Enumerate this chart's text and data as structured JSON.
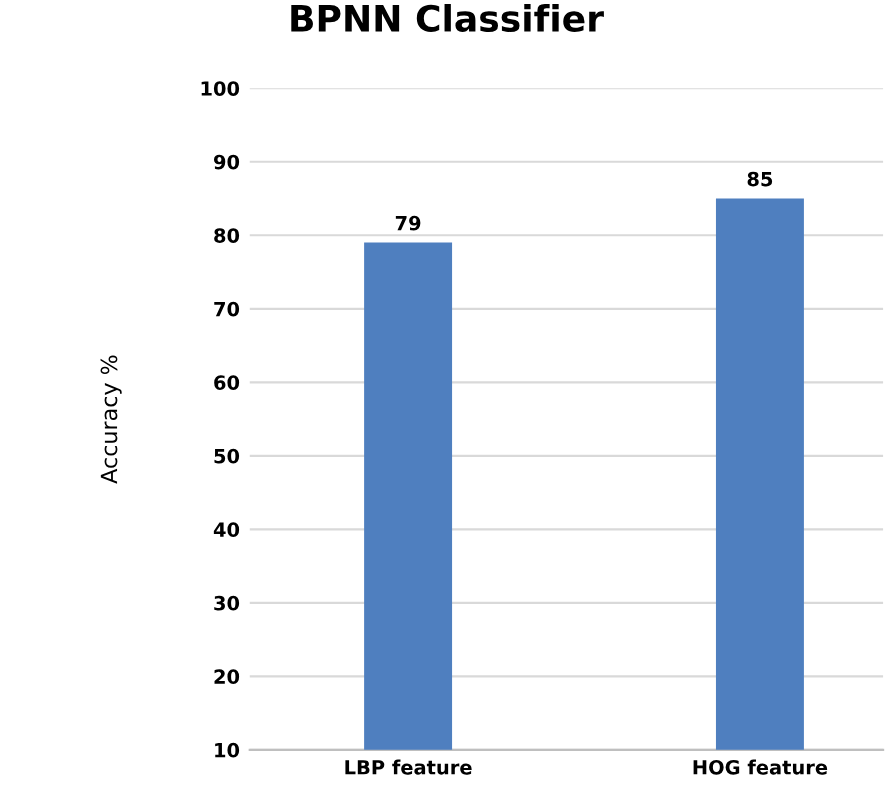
{
  "chart_data": {
    "type": "bar",
    "title": "BPNN Classifier",
    "ylabel": "Accuracy %",
    "categories": [
      "LBP feature",
      "HOG feature"
    ],
    "values": [
      79,
      85
    ],
    "color": "#4f7fbf",
    "ylim": [
      10,
      100
    ],
    "yticks": [
      10,
      20,
      30,
      40,
      50,
      60,
      70,
      80,
      90,
      100
    ],
    "grid": "y",
    "data_labels": true,
    "legend": false
  }
}
